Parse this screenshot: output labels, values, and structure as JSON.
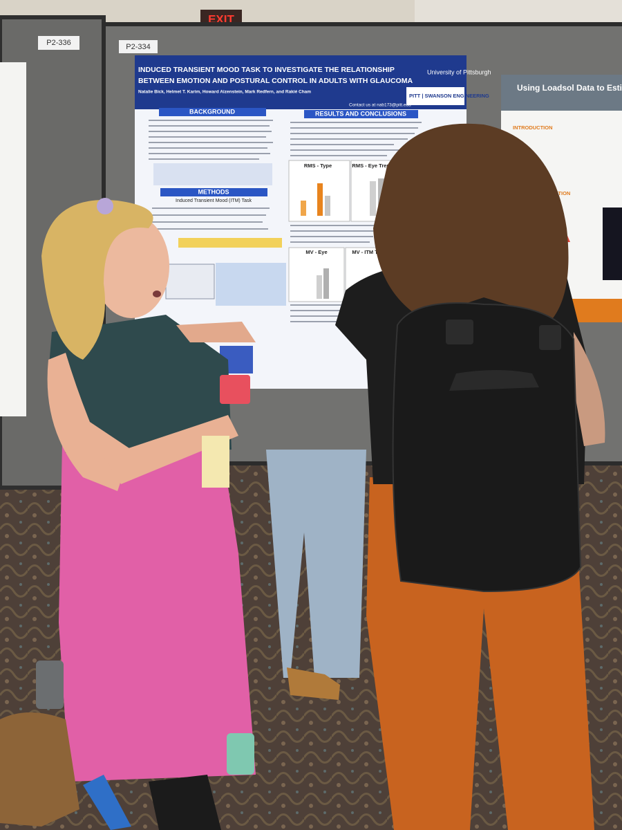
{
  "signs": {
    "exit": "EXIT",
    "board_left": "P2-336",
    "board_center": "P2-334"
  },
  "poster": {
    "title_lines": [
      "INDUCED TRANSIENT MOOD TASK TO INVESTIGATE THE RELATIONSHIP",
      "BETWEEN EMOTION AND POSTURAL CONTROL IN ADULTS WITH GLAUCOMA"
    ],
    "authors": "Natalie Bick, Helmet T. Karim, Howard Aizenstein, Mark Redfern, and Rakié Cham",
    "university": "University of Pittsburgh",
    "lab": "PITT | SWANSON ENGINEERING",
    "contact": "Contact us at nab173@pitt.edu",
    "sections": [
      "BACKGROUND",
      "METHODS",
      "RESULTS AND CONCLUSIONS"
    ],
    "methods_subtitle": "Induced Transient Mood (ITM) Task",
    "chart_titles": [
      "RMS - Type",
      "RMS - Eye Trend",
      "MV - Eye",
      "MV - ITM Trend"
    ]
  },
  "poster_right": {
    "title": "Using Loadsol Data to Estimate",
    "sections": [
      "INTRODUCTION",
      "RESEARCH QUESTION"
    ]
  }
}
